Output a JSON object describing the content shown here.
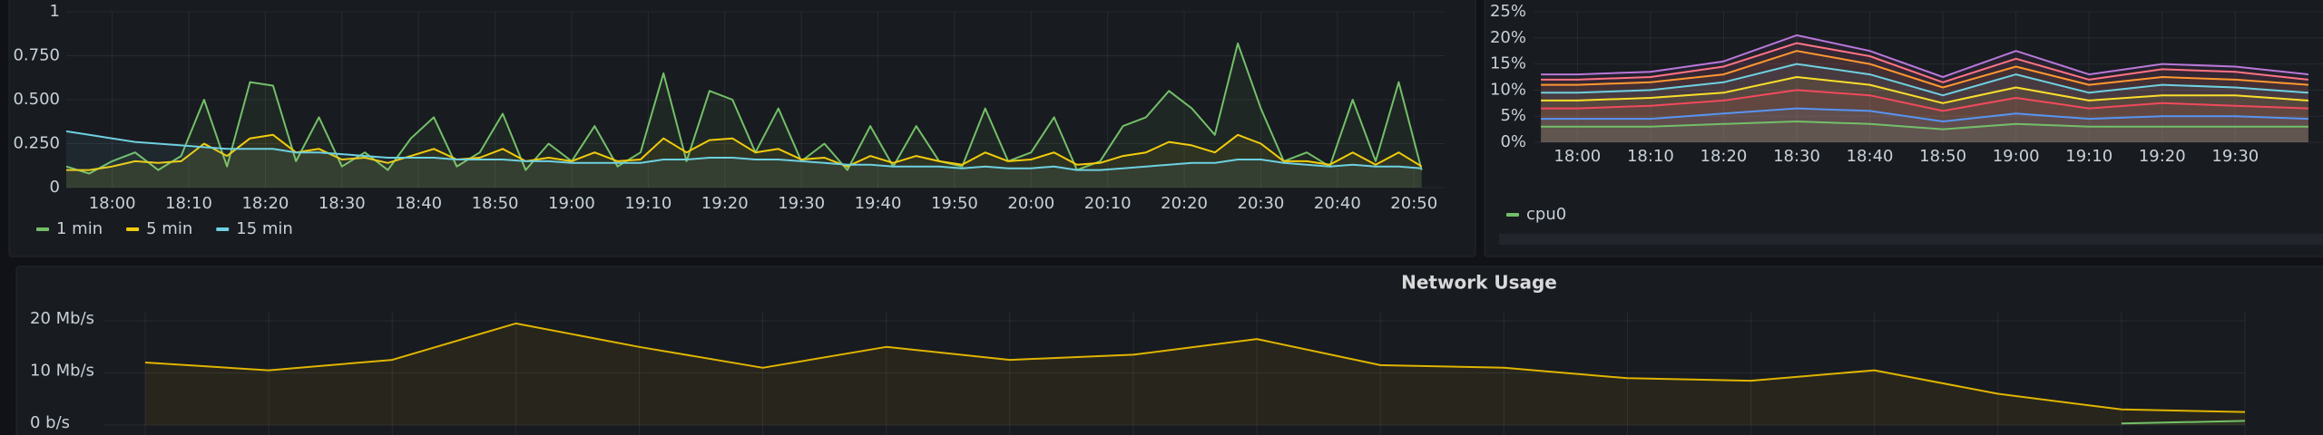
{
  "chart_data": [
    {
      "type": "line",
      "fill": true,
      "grid": true,
      "x": [
        "17:54",
        "17:57",
        "18:00",
        "18:03",
        "18:06",
        "18:09",
        "18:12",
        "18:15",
        "18:18",
        "18:21",
        "18:24",
        "18:27",
        "18:30",
        "18:33",
        "18:36",
        "18:39",
        "18:42",
        "18:45",
        "18:48",
        "18:51",
        "18:54",
        "18:57",
        "19:00",
        "19:03",
        "19:06",
        "19:09",
        "19:12",
        "19:15",
        "19:18",
        "19:21",
        "19:24",
        "19:27",
        "19:30",
        "19:33",
        "19:36",
        "19:39",
        "19:42",
        "19:45",
        "19:48",
        "19:51",
        "19:54",
        "19:57",
        "20:00",
        "20:03",
        "20:06",
        "20:09",
        "20:12",
        "20:15",
        "20:18",
        "20:21",
        "20:24",
        "20:27",
        "20:30",
        "20:33",
        "20:36",
        "20:39",
        "20:42",
        "20:45",
        "20:48",
        "20:51"
      ],
      "xlim": [
        "17:54",
        "20:54"
      ],
      "xticks": [
        "18:00",
        "18:10",
        "18:20",
        "18:30",
        "18:40",
        "18:50",
        "19:00",
        "19:10",
        "19:20",
        "19:30",
        "19:40",
        "19:50",
        "20:00",
        "20:10",
        "20:20",
        "20:30",
        "20:40",
        "20:50"
      ],
      "ylim": [
        0,
        1
      ],
      "yticks": [
        0,
        {
          "value": 0.25,
          "label": "0.250"
        },
        {
          "value": 0.5,
          "label": "0.500"
        },
        {
          "value": 0.75,
          "label": "0.750"
        },
        1
      ],
      "series": [
        {
          "name": "1 min",
          "color": "#73bf69",
          "values": [
            0.12,
            0.08,
            0.15,
            0.2,
            0.1,
            0.18,
            0.5,
            0.12,
            0.6,
            0.58,
            0.15,
            0.4,
            0.12,
            0.2,
            0.1,
            0.28,
            0.4,
            0.12,
            0.2,
            0.42,
            0.1,
            0.25,
            0.15,
            0.35,
            0.12,
            0.2,
            0.65,
            0.15,
            0.55,
            0.5,
            0.2,
            0.45,
            0.15,
            0.25,
            0.1,
            0.35,
            0.12,
            0.35,
            0.15,
            0.12,
            0.45,
            0.15,
            0.2,
            0.4,
            0.1,
            0.15,
            0.35,
            0.4,
            0.55,
            0.45,
            0.3,
            0.82,
            0.45,
            0.15,
            0.2,
            0.12,
            0.5,
            0.15,
            0.6,
            0.1
          ]
        },
        {
          "name": "5 min",
          "color": "#f2cc0c",
          "values": [
            0.1,
            0.1,
            0.12,
            0.15,
            0.14,
            0.15,
            0.25,
            0.18,
            0.28,
            0.3,
            0.2,
            0.22,
            0.16,
            0.17,
            0.14,
            0.18,
            0.22,
            0.16,
            0.17,
            0.22,
            0.15,
            0.17,
            0.15,
            0.2,
            0.15,
            0.16,
            0.28,
            0.2,
            0.27,
            0.28,
            0.2,
            0.22,
            0.16,
            0.17,
            0.12,
            0.18,
            0.14,
            0.18,
            0.15,
            0.13,
            0.2,
            0.15,
            0.16,
            0.2,
            0.13,
            0.14,
            0.18,
            0.2,
            0.26,
            0.24,
            0.2,
            0.3,
            0.25,
            0.15,
            0.15,
            0.13,
            0.2,
            0.13,
            0.2,
            0.12
          ]
        },
        {
          "name": "15 min",
          "color": "#6ed0e0",
          "values": [
            0.32,
            0.3,
            0.28,
            0.26,
            0.25,
            0.24,
            0.23,
            0.22,
            0.22,
            0.22,
            0.2,
            0.2,
            0.19,
            0.18,
            0.17,
            0.17,
            0.17,
            0.16,
            0.16,
            0.16,
            0.15,
            0.15,
            0.14,
            0.14,
            0.14,
            0.14,
            0.16,
            0.16,
            0.17,
            0.17,
            0.16,
            0.16,
            0.15,
            0.14,
            0.13,
            0.13,
            0.12,
            0.12,
            0.12,
            0.11,
            0.12,
            0.11,
            0.11,
            0.12,
            0.1,
            0.1,
            0.11,
            0.12,
            0.13,
            0.14,
            0.14,
            0.16,
            0.16,
            0.14,
            0.13,
            0.12,
            0.13,
            0.12,
            0.12,
            0.11
          ]
        }
      ]
    },
    {
      "type": "line",
      "fill": true,
      "grid": true,
      "x": [
        "17:55",
        "18:00",
        "18:10",
        "18:20",
        "18:30",
        "18:40",
        "18:50",
        "19:00",
        "19:10",
        "19:20",
        "19:30",
        "19:40"
      ],
      "xlim": [
        "17:54",
        "19:42"
      ],
      "xticks": [
        "18:00",
        "18:10",
        "18:20",
        "18:30",
        "18:40",
        "18:50",
        "19:00",
        "19:10",
        "19:20",
        "19:30"
      ],
      "ylim": [
        0,
        25
      ],
      "yticks": [
        {
          "value": 0,
          "label": "0%"
        },
        {
          "value": 5,
          "label": "5%"
        },
        {
          "value": 10,
          "label": "10%"
        },
        {
          "value": 15,
          "label": "15%"
        },
        {
          "value": 20,
          "label": "20%"
        },
        {
          "value": 25,
          "label": "25%"
        }
      ],
      "series": [
        {
          "color": "#b877d9",
          "values": [
            13,
            13,
            13.5,
            15.5,
            20.5,
            17.5,
            12.5,
            17.5,
            13,
            15,
            14.5,
            13
          ]
        },
        {
          "color": "#ff7383",
          "values": [
            12,
            12,
            12.5,
            14.5,
            19,
            16.5,
            11.5,
            16,
            12,
            14,
            13.5,
            12
          ]
        },
        {
          "color": "#ff9830",
          "values": [
            11,
            11,
            11.5,
            13,
            17.5,
            15,
            10.5,
            14.5,
            11,
            12.5,
            12,
            11
          ]
        },
        {
          "color": "#6ed0e0",
          "values": [
            9.5,
            9.5,
            10,
            11.5,
            15,
            13,
            9,
            13,
            9.5,
            11,
            10.5,
            9.5
          ]
        },
        {
          "color": "#fade2a",
          "values": [
            8,
            8,
            8.5,
            9.5,
            12.5,
            11,
            7.5,
            10.5,
            8,
            9,
            9,
            8
          ]
        },
        {
          "color": "#f2495c",
          "values": [
            6.5,
            6.5,
            7,
            8,
            10,
            9,
            6,
            8.5,
            6.5,
            7.5,
            7,
            6.5
          ]
        },
        {
          "color": "#5794f2",
          "values": [
            4.5,
            4.5,
            4.5,
            5.5,
            6.5,
            6,
            4,
            5.5,
            4.5,
            5,
            5,
            4.5
          ]
        },
        {
          "name": "cpu0",
          "color": "#73bf69",
          "values": [
            3,
            3,
            3,
            3.5,
            4,
            3.5,
            2.5,
            3.5,
            3,
            3,
            3,
            3
          ]
        }
      ]
    },
    {
      "type": "line",
      "fill": true,
      "grid": true,
      "title": "Network Usage",
      "categories": [
        null,
        null,
        null,
        null,
        null,
        null,
        null,
        null,
        null,
        null,
        null,
        null,
        null,
        null,
        null,
        null,
        null,
        null
      ],
      "ylim": [
        0,
        20
      ],
      "yticks": [
        {
          "value": 0,
          "label": "0 b/s"
        },
        {
          "value": 10,
          "label": "10 Mb/s"
        },
        {
          "value": 20,
          "label": "20 Mb/s"
        }
      ],
      "series": [
        {
          "color": "#e0b400",
          "values": [
            12,
            10.5,
            12.5,
            19.5,
            15,
            11,
            15,
            12.5,
            13.5,
            16.5,
            11.5,
            11,
            9,
            8.5,
            10.5,
            6,
            3,
            2.5
          ]
        },
        {
          "color": "#73bf69",
          "values": [
            null,
            null,
            null,
            null,
            null,
            null,
            null,
            null,
            null,
            null,
            null,
            null,
            null,
            null,
            null,
            null,
            0.3,
            0.8
          ]
        }
      ]
    }
  ]
}
